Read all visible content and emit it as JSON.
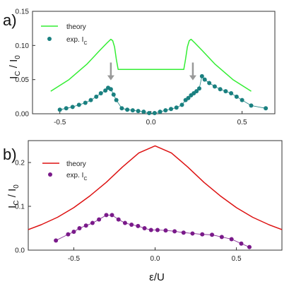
{
  "chart_data": [
    {
      "type": "line",
      "panel_label": "a)",
      "ylabel": "I_C / I_0",
      "xlabel": "",
      "xlim": [
        -0.65,
        0.68
      ],
      "ylim": [
        0,
        0.15
      ],
      "xticks": [
        "-0.5",
        "0.0",
        "0.5"
      ],
      "yticks": [
        "0.00",
        "0.05",
        "0.10",
        "0.15"
      ],
      "grid": false,
      "legend": "top-left",
      "colors": {
        "theory": "#33ee33",
        "exp": "#1a8080",
        "arrow": "#999999"
      },
      "series": [
        {
          "name": "theory",
          "kind": "line",
          "x": [
            -0.55,
            -0.45,
            -0.35,
            -0.28,
            -0.24,
            -0.22,
            -0.21,
            -0.2,
            -0.19,
            -0.18,
            0.0,
            0.18,
            0.19,
            0.2,
            0.21,
            0.22,
            0.24,
            0.28,
            0.35,
            0.45,
            0.55
          ],
          "y": [
            0.033,
            0.05,
            0.073,
            0.093,
            0.104,
            0.109,
            0.107,
            0.098,
            0.08,
            0.065,
            0.065,
            0.065,
            0.08,
            0.098,
            0.107,
            0.109,
            0.104,
            0.093,
            0.073,
            0.05,
            0.033
          ]
        },
        {
          "name": "exp. I_C",
          "kind": "markers+line",
          "x": [
            -0.5,
            -0.465,
            -0.43,
            -0.395,
            -0.36,
            -0.33,
            -0.3,
            -0.275,
            -0.25,
            -0.235,
            -0.22,
            -0.205,
            -0.19,
            -0.16,
            -0.13,
            -0.1,
            -0.07,
            -0.04,
            -0.01,
            0.02,
            0.05,
            0.08,
            0.11,
            0.14,
            0.17,
            0.19,
            0.205,
            0.22,
            0.235,
            0.25,
            0.265,
            0.28,
            0.295,
            0.32,
            0.35,
            0.38,
            0.41,
            0.44,
            0.47,
            0.5,
            0.55,
            0.63
          ],
          "y": [
            0.006,
            0.008,
            0.01,
            0.013,
            0.016,
            0.02,
            0.025,
            0.03,
            0.034,
            0.038,
            0.036,
            0.028,
            0.02,
            0.008,
            0.006,
            0.005,
            0.004,
            0.003,
            0.001,
            0.001,
            0.003,
            0.005,
            0.007,
            0.009,
            0.013,
            0.02,
            0.023,
            0.027,
            0.03,
            0.033,
            0.037,
            0.055,
            0.05,
            0.045,
            0.04,
            0.036,
            0.033,
            0.03,
            0.025,
            0.02,
            0.012,
            0.008
          ]
        }
      ],
      "arrows": [
        {
          "x": -0.22,
          "y_from": 0.075,
          "y_to": 0.049
        },
        {
          "x": 0.23,
          "y_from": 0.075,
          "y_to": 0.049
        }
      ]
    },
    {
      "type": "line",
      "panel_label": "b)",
      "ylabel": "I_C / I_0",
      "xlabel": "ε/U",
      "xlim": [
        -0.78,
        0.78
      ],
      "ylim": [
        0,
        0.25
      ],
      "xticks": [
        "-0.5",
        "0.0",
        "0.5"
      ],
      "yticks": [
        "0.0",
        "0.1",
        "0.2"
      ],
      "grid": false,
      "legend": "top-left",
      "colors": {
        "theory": "#dd1111",
        "exp": "#7a1a8a"
      },
      "series": [
        {
          "name": "theory",
          "kind": "line",
          "x": [
            -0.78,
            -0.7,
            -0.6,
            -0.5,
            -0.4,
            -0.3,
            -0.2,
            -0.1,
            0.0,
            0.1,
            0.2,
            0.3,
            0.4,
            0.5,
            0.6,
            0.7,
            0.78
          ],
          "y": [
            0.047,
            0.058,
            0.075,
            0.097,
            0.124,
            0.155,
            0.19,
            0.222,
            0.238,
            0.222,
            0.19,
            0.155,
            0.124,
            0.097,
            0.075,
            0.058,
            0.047
          ]
        },
        {
          "name": "exp. I_C",
          "kind": "markers+line",
          "x": [
            -0.61,
            -0.535,
            -0.5,
            -0.465,
            -0.425,
            -0.385,
            -0.345,
            -0.3,
            -0.265,
            -0.225,
            -0.185,
            -0.145,
            -0.105,
            -0.065,
            -0.025,
            0.015,
            0.065,
            0.12,
            0.175,
            0.23,
            0.29,
            0.35,
            0.41,
            0.47,
            0.53,
            0.58
          ],
          "y": [
            0.022,
            0.036,
            0.042,
            0.05,
            0.056,
            0.062,
            0.07,
            0.08,
            0.08,
            0.07,
            0.062,
            0.058,
            0.055,
            0.05,
            0.046,
            0.046,
            0.045,
            0.043,
            0.04,
            0.038,
            0.036,
            0.035,
            0.03,
            0.025,
            0.015,
            0.007
          ]
        }
      ]
    }
  ]
}
